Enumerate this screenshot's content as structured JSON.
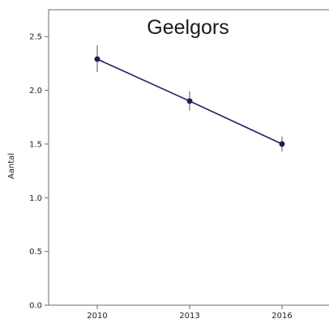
{
  "chart_data": {
    "type": "line",
    "title": "Geelgors",
    "xlabel": "",
    "ylabel": "Aantal",
    "categories": [
      "2010",
      "2013",
      "2016"
    ],
    "series": [
      {
        "values": [
          2.29,
          1.9,
          1.5
        ],
        "error_low": [
          2.17,
          1.81,
          1.43
        ],
        "error_high": [
          2.42,
          1.99,
          1.57
        ],
        "color": "#1f1f5e"
      }
    ],
    "ylim": [
      0,
      2.75
    ],
    "yticks": [
      "0.0",
      "0.5",
      "1.0",
      "1.5",
      "2.0",
      "2.5"
    ],
    "grid": false,
    "legend": "none"
  }
}
